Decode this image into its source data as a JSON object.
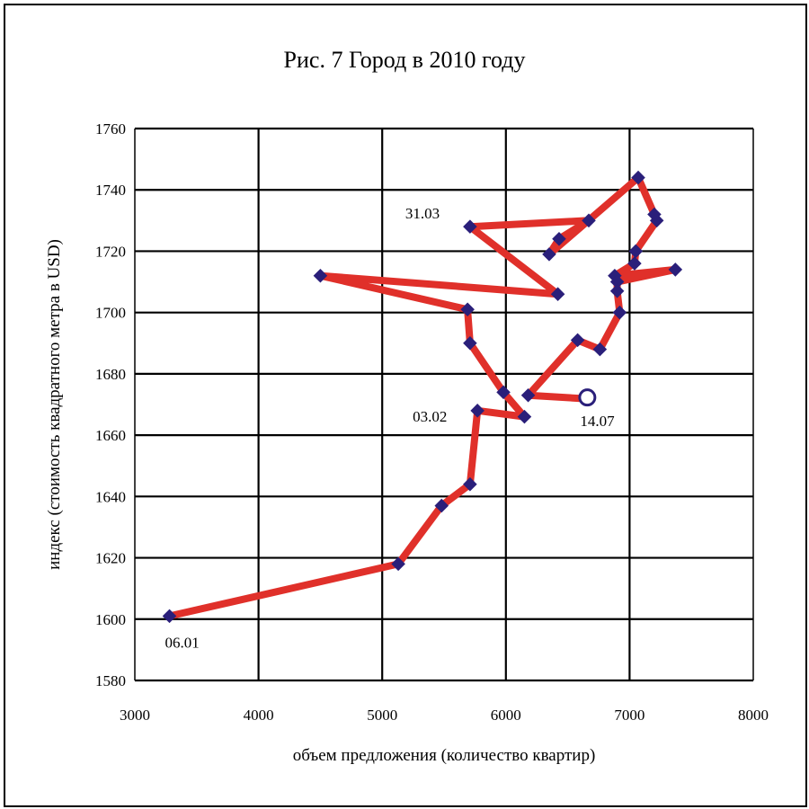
{
  "chart_data": {
    "type": "line",
    "title": "Рис. 7 Город в 2010 году",
    "xlabel": "объем предложения (количество квартир)",
    "ylabel": "индекс (стоимость квадратного метра в USD)",
    "xlim": [
      3000,
      8000
    ],
    "ylim": [
      1580,
      1760
    ],
    "xticks": [
      3000,
      4000,
      5000,
      6000,
      7000,
      8000
    ],
    "yticks": [
      1580,
      1600,
      1620,
      1640,
      1660,
      1680,
      1700,
      1720,
      1740,
      1760
    ],
    "grid": true,
    "line_color": "#e0302a",
    "marker_color": "#2a1f7a",
    "series": [
      {
        "x": [
          3280,
          5130,
          5480,
          5710,
          5770,
          6150,
          5980,
          5710,
          5690,
          4500,
          6420,
          5710,
          6670,
          6430,
          6350,
          7070,
          7200,
          7220,
          7050,
          7040,
          6880,
          7370,
          6900,
          6900,
          6920,
          6760,
          6580,
          6180,
          6600
        ],
        "y": [
          1601,
          1618,
          1637,
          1644,
          1668,
          1666,
          1674,
          1690,
          1701,
          1712,
          1706,
          1728,
          1730,
          1724,
          1719,
          1744,
          1732,
          1730,
          1720,
          1716,
          1712,
          1714,
          1710,
          1707,
          1700,
          1688,
          1691,
          1673,
          1672
        ],
        "end_marker": "circle"
      }
    ],
    "annotations": [
      {
        "text": "06.01",
        "x": 3280,
        "y": 1601
      },
      {
        "text": "03.02",
        "x": 5770,
        "y": 1668
      },
      {
        "text": "31.03",
        "x": 5710,
        "y": 1728
      },
      {
        "text": "14.07",
        "x": 6600,
        "y": 1672
      }
    ]
  }
}
